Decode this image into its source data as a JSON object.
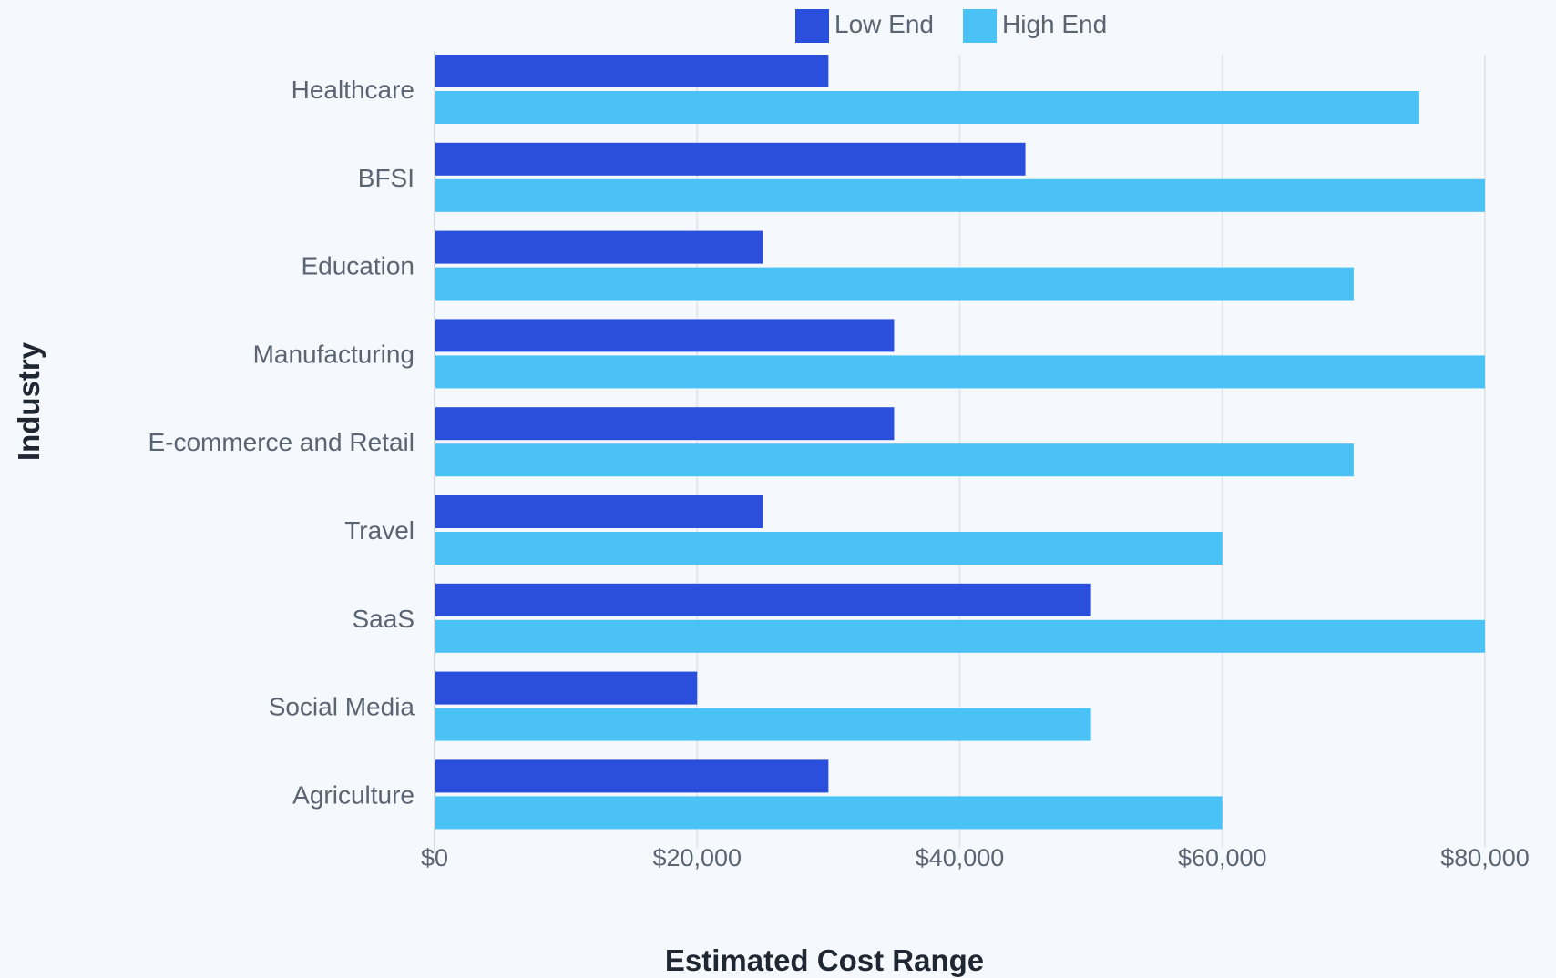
{
  "chart_data": {
    "type": "bar",
    "orientation": "horizontal",
    "categories": [
      "Healthcare",
      "BFSI",
      "Education",
      "Manufacturing",
      "E-commerce and Retail",
      "Travel",
      "SaaS",
      "Social Media",
      "Agriculture"
    ],
    "series": [
      {
        "name": "Low End",
        "color": "#2a4fdc",
        "values": [
          30000,
          45000,
          25000,
          35000,
          35000,
          25000,
          50000,
          20000,
          30000
        ]
      },
      {
        "name": "High End",
        "color": "#4ac2f5",
        "values": [
          75000,
          80000,
          70000,
          80000,
          70000,
          60000,
          80000,
          50000,
          60000
        ]
      }
    ],
    "xlabel": "Estimated Cost Range",
    "ylabel": "Industry",
    "xlim": [
      0,
      80000
    ],
    "xticks": [
      0,
      20000,
      40000,
      60000,
      80000
    ],
    "xtick_labels": [
      "$0",
      "$20,000",
      "$40,000",
      "$60,000",
      "$80,000"
    ],
    "grid": "vertical",
    "legend_position": "top-center"
  }
}
